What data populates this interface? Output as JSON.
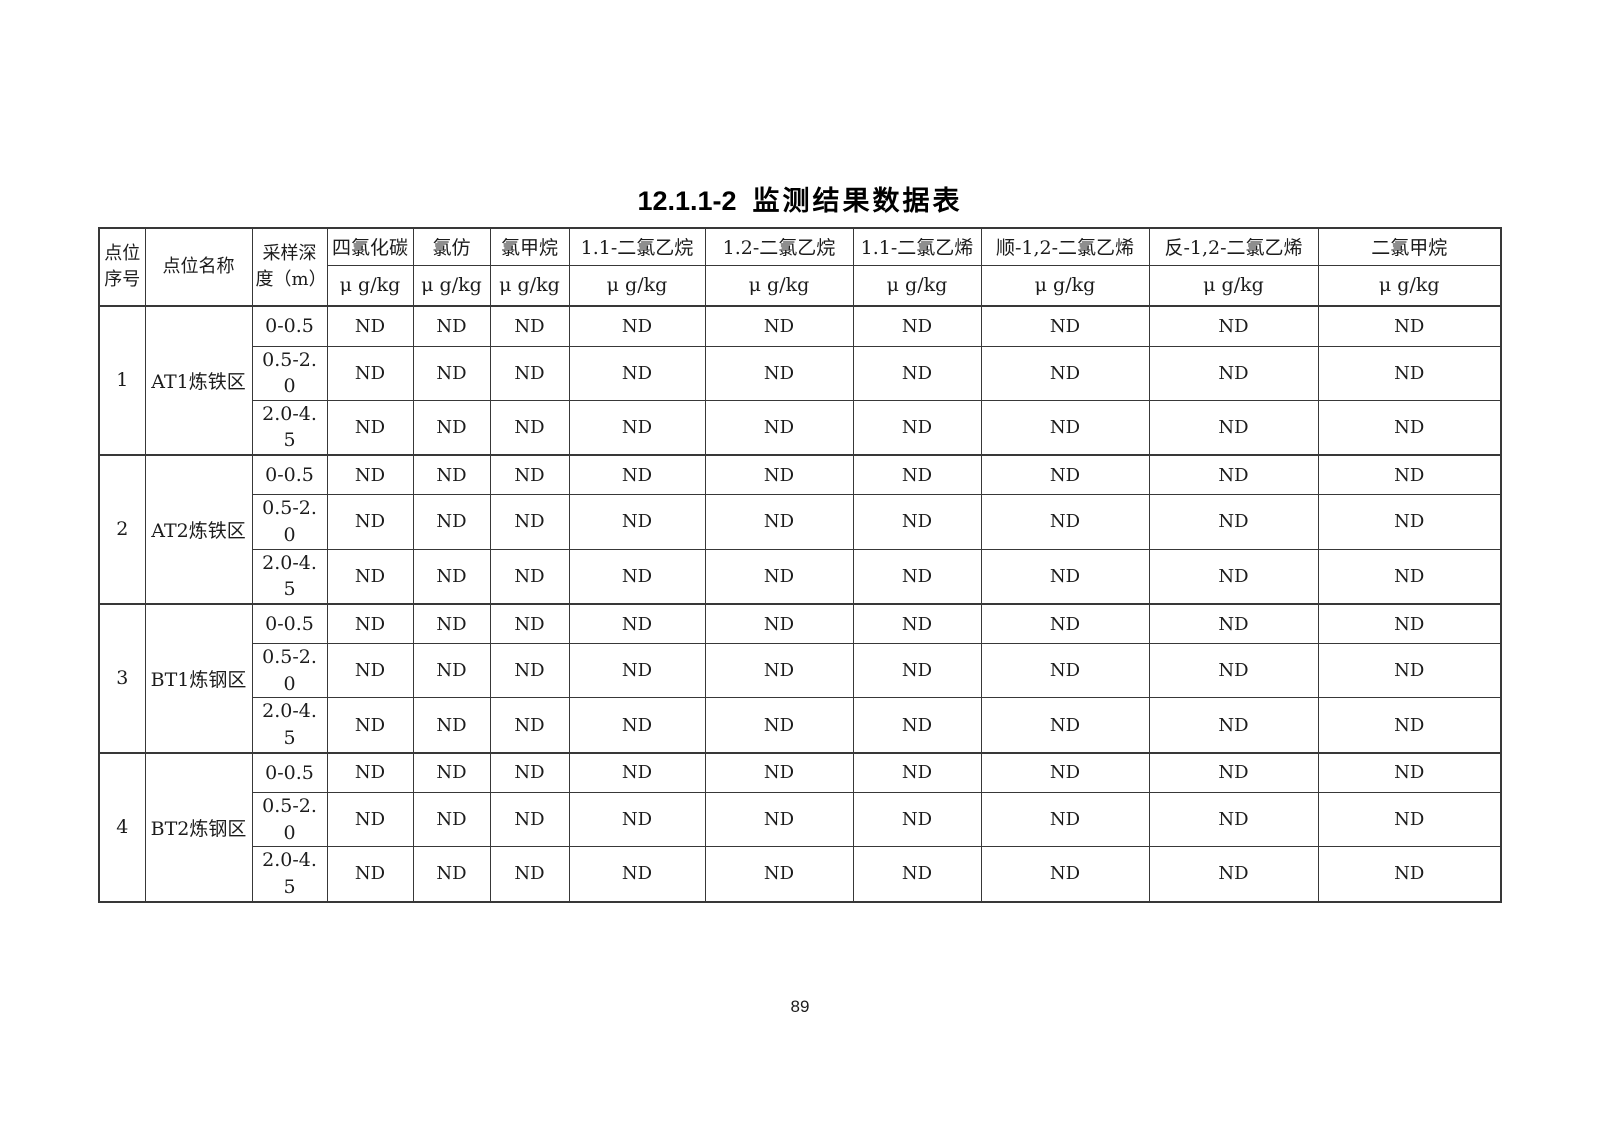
{
  "page": {
    "title": {
      "number": "12.1.1-2",
      "text": "监测结果数据表"
    },
    "page_number": "89"
  },
  "table": {
    "row_headers": [
      {
        "id": "point-index",
        "label": "点位序号"
      },
      {
        "id": "point-name",
        "label": "点位名称"
      },
      {
        "id": "depth",
        "label": "采样深度（m）"
      }
    ],
    "analyte_columns": [
      {
        "name": "四氯化碳",
        "unit": "μ g/kg"
      },
      {
        "name": "氯仿",
        "unit": "μ g/kg"
      },
      {
        "name": "氯甲烷",
        "unit": "μ g/kg"
      },
      {
        "name": "1.1-二氯乙烷",
        "unit": "μ g/kg"
      },
      {
        "name": "1.2-二氯乙烷",
        "unit": "μ g/kg"
      },
      {
        "name": "1.1-二氯乙烯",
        "unit": "μ g/kg"
      },
      {
        "name": "顺-1,2-二氯乙烯",
        "unit": "μ g/kg"
      },
      {
        "name": "反-1,2-二氯乙烯",
        "unit": "μ g/kg"
      },
      {
        "name": "二氯甲烷",
        "unit": "μ g/kg"
      }
    ],
    "groups": [
      {
        "point_index": "1",
        "point_name": "AT1炼铁区",
        "rows": [
          {
            "depth": "0-0.5",
            "values": [
              "ND",
              "ND",
              "ND",
              "ND",
              "ND",
              "ND",
              "ND",
              "ND",
              "ND"
            ]
          },
          {
            "depth": "0.5-2.0",
            "values": [
              "ND",
              "ND",
              "ND",
              "ND",
              "ND",
              "ND",
              "ND",
              "ND",
              "ND"
            ]
          },
          {
            "depth": "2.0-4.5",
            "values": [
              "ND",
              "ND",
              "ND",
              "ND",
              "ND",
              "ND",
              "ND",
              "ND",
              "ND"
            ]
          }
        ]
      },
      {
        "point_index": "2",
        "point_name": "AT2炼铁区",
        "rows": [
          {
            "depth": "0-0.5",
            "values": [
              "ND",
              "ND",
              "ND",
              "ND",
              "ND",
              "ND",
              "ND",
              "ND",
              "ND"
            ]
          },
          {
            "depth": "0.5-2.0",
            "values": [
              "ND",
              "ND",
              "ND",
              "ND",
              "ND",
              "ND",
              "ND",
              "ND",
              "ND"
            ]
          },
          {
            "depth": "2.0-4.5",
            "values": [
              "ND",
              "ND",
              "ND",
              "ND",
              "ND",
              "ND",
              "ND",
              "ND",
              "ND"
            ]
          }
        ]
      },
      {
        "point_index": "3",
        "point_name": "BT1炼钢区",
        "rows": [
          {
            "depth": "0-0.5",
            "values": [
              "ND",
              "ND",
              "ND",
              "ND",
              "ND",
              "ND",
              "ND",
              "ND",
              "ND"
            ]
          },
          {
            "depth": "0.5-2.0",
            "values": [
              "ND",
              "ND",
              "ND",
              "ND",
              "ND",
              "ND",
              "ND",
              "ND",
              "ND"
            ]
          },
          {
            "depth": "2.0-4.5",
            "values": [
              "ND",
              "ND",
              "ND",
              "ND",
              "ND",
              "ND",
              "ND",
              "ND",
              "ND"
            ]
          }
        ]
      },
      {
        "point_index": "4",
        "point_name": "BT2炼钢区",
        "rows": [
          {
            "depth": "0-0.5",
            "values": [
              "ND",
              "ND",
              "ND",
              "ND",
              "ND",
              "ND",
              "ND",
              "ND",
              "ND"
            ]
          },
          {
            "depth": "0.5-2.0",
            "values": [
              "ND",
              "ND",
              "ND",
              "ND",
              "ND",
              "ND",
              "ND",
              "ND",
              "ND"
            ]
          },
          {
            "depth": "2.0-4.5",
            "values": [
              "ND",
              "ND",
              "ND",
              "ND",
              "ND",
              "ND",
              "ND",
              "ND",
              "ND"
            ]
          }
        ]
      }
    ]
  }
}
